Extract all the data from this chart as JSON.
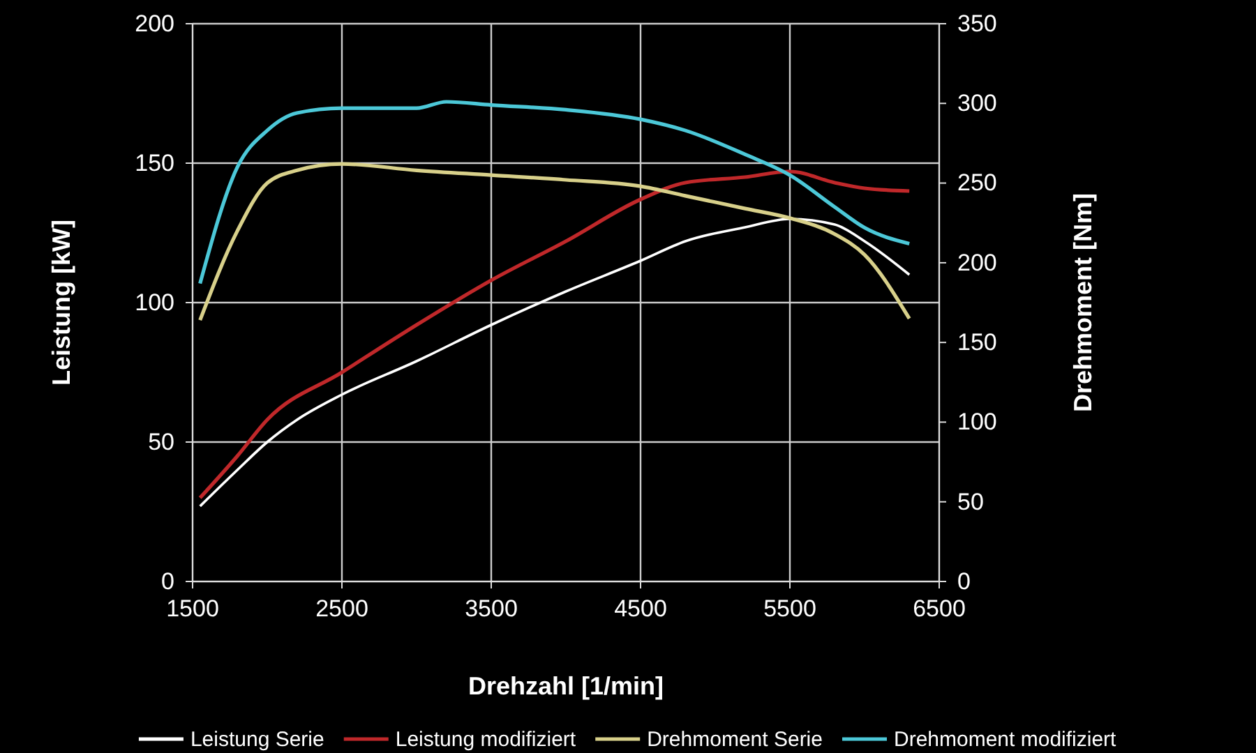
{
  "chart_data": {
    "type": "line",
    "xlabel": "Drehzahl [1/min]",
    "ylabel": "Leistung [kW]",
    "y2label": "Drehmoment [Nm]",
    "xlim": [
      1500,
      6500
    ],
    "xticks": [
      1500,
      2500,
      3500,
      4500,
      5500,
      6500
    ],
    "ylim": [
      0,
      200
    ],
    "yticks": [
      0,
      50,
      100,
      150,
      200
    ],
    "y2lim": [
      0,
      350
    ],
    "y2ticks": [
      0,
      50,
      100,
      150,
      200,
      250,
      300,
      350
    ],
    "grid": true,
    "legend": "bottom",
    "marker": "none",
    "line_style": "solid",
    "series": [
      {
        "name": "Leistung Serie",
        "color": "#ffffff",
        "x": [
          1550,
          1800,
          2000,
          2200,
          2500,
          3000,
          3500,
          4000,
          4500,
          4800,
          5200,
          5500,
          5800,
          6000,
          6300
        ],
        "values": [
          27,
          40,
          50,
          58,
          67,
          79,
          92,
          104,
          115,
          122,
          127,
          130,
          128,
          122,
          110
        ]
      },
      {
        "name": "Leistung modifiziert",
        "color": "#c0282a",
        "x": [
          1550,
          1800,
          2000,
          2500,
          3000,
          3500,
          4000,
          4500,
          4800,
          5200,
          5500,
          5800,
          6000,
          6300
        ],
        "values": [
          30,
          45,
          58,
          75,
          92,
          108,
          122,
          137,
          143,
          145,
          147,
          143,
          141,
          140
        ]
      },
      {
        "name": "Drehmoment Serie",
        "color": "#d8d08a",
        "axis": "y2",
        "x": [
          1550,
          1800,
          2000,
          2200,
          2500,
          3000,
          3500,
          4000,
          4500,
          4800,
          5200,
          5500,
          5800,
          6000,
          6300
        ],
        "values": [
          164,
          220,
          250,
          258,
          262,
          258,
          255,
          252,
          248,
          242,
          234,
          228,
          218,
          205,
          165
        ]
      },
      {
        "name": "Drehmoment modifiziert",
        "color": "#4cc8d8",
        "axis": "y2",
        "x": [
          1550,
          1800,
          2000,
          2200,
          2500,
          3000,
          3200,
          3500,
          4000,
          4500,
          4800,
          5200,
          5500,
          5800,
          6000,
          6300
        ],
        "values": [
          187,
          260,
          283,
          294,
          297,
          297,
          301,
          299,
          296,
          290,
          283,
          268,
          255,
          235,
          222,
          212
        ]
      }
    ]
  }
}
